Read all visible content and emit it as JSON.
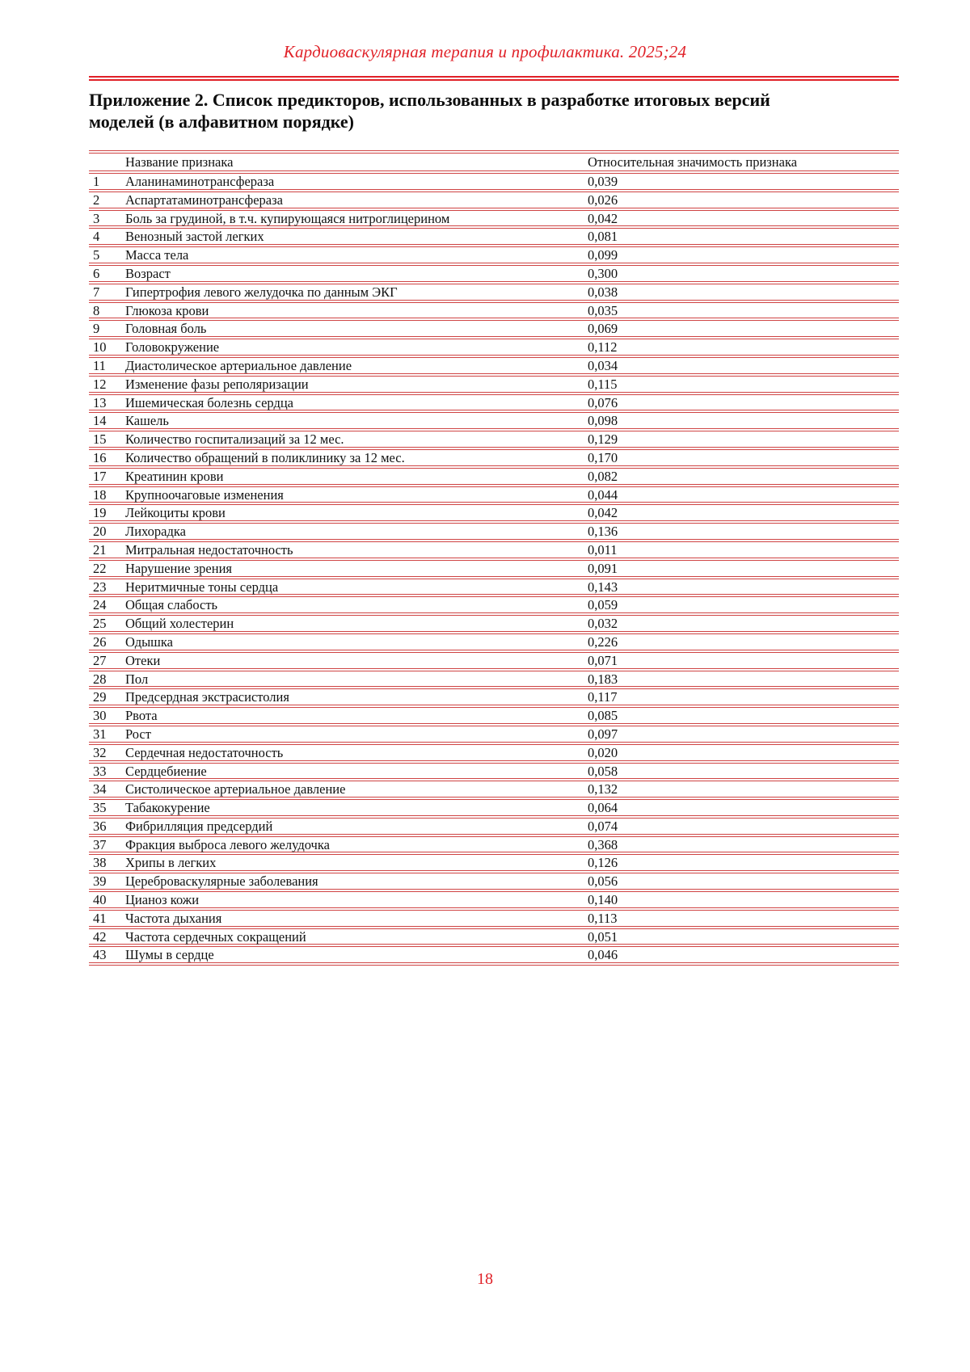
{
  "journal_header": "Кардиоваскулярная терапия и профилактика. 2025;24",
  "title_line1": "Приложение 2. Список предикторов, использованных в разработке итоговых версий",
  "title_line2": "моделей (в алфавитном порядке)",
  "page_number": "18",
  "colors": {
    "accent_red": "#e02128",
    "rule_red": "#cf4343",
    "text_black": "#121212"
  },
  "table": {
    "col_name": "Название признака",
    "col_value": "Относительная значимость признака",
    "rows": [
      {
        "num": "1",
        "name": "Аланинаминотрансфераза",
        "value": "0,039"
      },
      {
        "num": "2",
        "name": "Аспартатаминотрансфераза",
        "value": "0,026"
      },
      {
        "num": "3",
        "name": "Боль за грудиной, в т.ч. купирующаяся нитроглицерином",
        "value": "0,042"
      },
      {
        "num": "4",
        "name": "Венозный застой легких",
        "value": "0,081"
      },
      {
        "num": "5",
        "name": "Масса тела",
        "value": "0,099"
      },
      {
        "num": "6",
        "name": "Возраст",
        "value": "0,300"
      },
      {
        "num": "7",
        "name": "Гипертрофия левого желудочка по данным ЭКГ",
        "value": "0,038"
      },
      {
        "num": "8",
        "name": "Глюкоза крови",
        "value": "0,035"
      },
      {
        "num": "9",
        "name": "Головная боль",
        "value": "0,069"
      },
      {
        "num": "10",
        "name": "Головокружение",
        "value": "0,112"
      },
      {
        "num": "11",
        "name": "Диастолическое артериальное давление",
        "value": "0,034"
      },
      {
        "num": "12",
        "name": "Изменение фазы реполяризации",
        "value": "0,115"
      },
      {
        "num": "13",
        "name": "Ишемическая болезнь сердца",
        "value": "0,076"
      },
      {
        "num": "14",
        "name": "Кашель",
        "value": "0,098"
      },
      {
        "num": "15",
        "name": "Количество госпитализаций за 12 мес.",
        "value": "0,129"
      },
      {
        "num": "16",
        "name": "Количество обращений в поликлинику за 12 мес.",
        "value": "0,170"
      },
      {
        "num": "17",
        "name": "Креатинин крови",
        "value": "0,082"
      },
      {
        "num": "18",
        "name": "Крупноочаговые изменения",
        "value": "0,044"
      },
      {
        "num": "19",
        "name": "Лейкоциты крови",
        "value": "0,042"
      },
      {
        "num": "20",
        "name": "Лихорадка",
        "value": "0,136"
      },
      {
        "num": "21",
        "name": "Митральная недостаточность",
        "value": "0,011"
      },
      {
        "num": "22",
        "name": "Нарушение зрения",
        "value": "0,091"
      },
      {
        "num": "23",
        "name": "Неритмичные тоны сердца",
        "value": "0,143"
      },
      {
        "num": "24",
        "name": "Общая слабость",
        "value": "0,059"
      },
      {
        "num": "25",
        "name": "Общий холестерин",
        "value": "0,032"
      },
      {
        "num": "26",
        "name": "Одышка",
        "value": "0,226"
      },
      {
        "num": "27",
        "name": "Отеки",
        "value": "0,071"
      },
      {
        "num": "28",
        "name": "Пол",
        "value": "0,183"
      },
      {
        "num": "29",
        "name": "Предсердная экстрасистолия",
        "value": "0,117"
      },
      {
        "num": "30",
        "name": "Рвота",
        "value": "0,085"
      },
      {
        "num": "31",
        "name": "Рост",
        "value": "0,097"
      },
      {
        "num": "32",
        "name": "Сердечная недостаточность",
        "value": "0,020"
      },
      {
        "num": "33",
        "name": "Сердцебиение",
        "value": "0,058"
      },
      {
        "num": "34",
        "name": "Систолическое артериальное давление",
        "value": "0,132"
      },
      {
        "num": "35",
        "name": "Табакокурение",
        "value": "0,064"
      },
      {
        "num": "36",
        "name": "Фибрилляция предсердий",
        "value": "0,074"
      },
      {
        "num": "37",
        "name": "Фракция выброса левого желудочка",
        "value": "0,368"
      },
      {
        "num": "38",
        "name": "Хрипы в легких",
        "value": "0,126"
      },
      {
        "num": "39",
        "name": "Цереброваскулярные заболевания",
        "value": "0,056"
      },
      {
        "num": "40",
        "name": "Цианоз кожи",
        "value": "0,140"
      },
      {
        "num": "41",
        "name": "Частота дыхания",
        "value": "0,113"
      },
      {
        "num": "42",
        "name": "Частота сердечных сокращений",
        "value": "0,051"
      },
      {
        "num": "43",
        "name": "Шумы в сердце",
        "value": "0,046"
      }
    ]
  }
}
